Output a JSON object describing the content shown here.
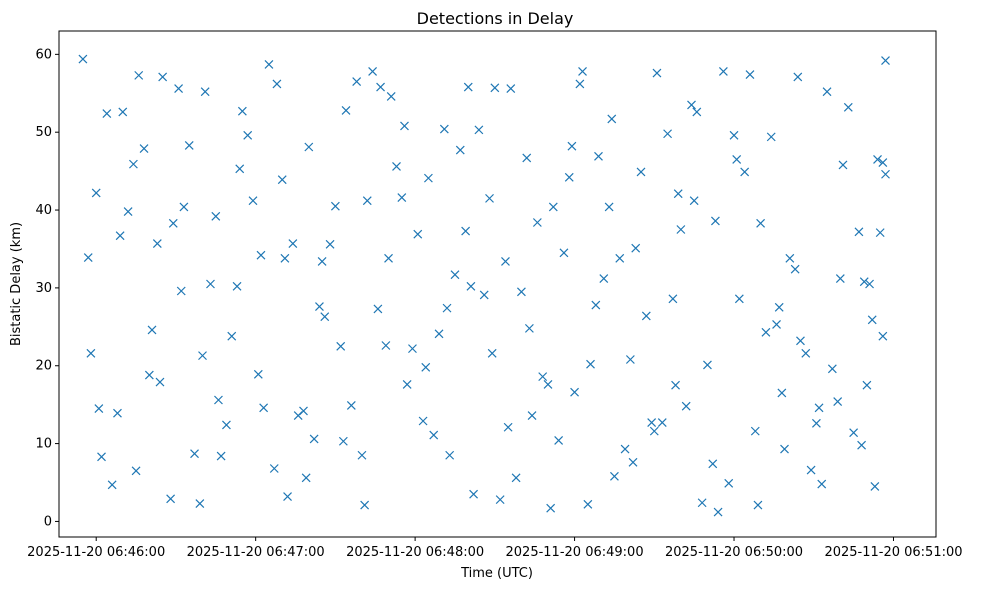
{
  "chart_data": {
    "type": "scatter",
    "title": "Detections in Delay",
    "xlabel": "Time (UTC)",
    "ylabel": "Bistatic Delay (km)",
    "x_tick_labels": [
      "2025-11-20 06:46:00",
      "2025-11-20 06:47:00",
      "2025-11-20 06:48:00",
      "2025-11-20 06:49:00",
      "2025-11-20 06:50:00",
      "2025-11-20 06:51:00"
    ],
    "y_tick_labels": [
      "0",
      "10",
      "20",
      "30",
      "40",
      "50",
      "60"
    ],
    "xlim": [
      "2025-11-20 06:45:46",
      "2025-11-20 06:51:16"
    ],
    "ylim": [
      -2,
      63
    ],
    "marker": "x",
    "color": "#1f77b4",
    "grid": false,
    "legend": "none",
    "series": [
      {
        "x": [
          "2025-11-20 06:45:55",
          "2025-11-20 06:46:02",
          "2025-11-20 06:46:10",
          "2025-11-20 06:46:18",
          "2025-11-20 06:46:25",
          "2025-11-20 06:46:33",
          "2025-11-20 06:46:41",
          "2025-11-20 06:46:49",
          "2025-11-20 06:46:57",
          "2025-11-20 06:47:05",
          "2025-11-20 06:47:12",
          "2025-11-20 06:47:20",
          "2025-11-20 06:47:28",
          "2025-11-20 06:47:36",
          "2025-11-20 06:47:44",
          "2025-11-20 06:47:51",
          "2025-11-20 06:47:59",
          "2025-11-20 06:48:07",
          "2025-11-20 06:48:15",
          "2025-11-20 06:48:22",
          "2025-11-20 06:48:30",
          "2025-11-20 06:48:38",
          "2025-11-20 06:48:46",
          "2025-11-20 06:48:54",
          "2025-11-20 06:49:02",
          "2025-11-20 06:49:09",
          "2025-11-20 06:49:17",
          "2025-11-20 06:49:25",
          "2025-11-20 06:49:33",
          "2025-11-20 06:49:40",
          "2025-11-20 06:49:48",
          "2025-11-20 06:49:56",
          "2025-11-20 06:50:04",
          "2025-11-20 06:50:12",
          "2025-11-20 06:50:19",
          "2025-11-20 06:50:27",
          "2025-11-20 06:50:35",
          "2025-11-20 06:50:43",
          "2025-11-20 06:50:51",
          "2025-11-20 06:50:57",
          "2025-11-20 06:45:58",
          "2025-11-20 06:46:06",
          "2025-11-20 06:46:14",
          "2025-11-20 06:46:21",
          "2025-11-20 06:46:29",
          "2025-11-20 06:46:37",
          "2025-11-20 06:46:45",
          "2025-11-20 06:46:53",
          "2025-11-20 06:47:01",
          "2025-11-20 06:47:08",
          "2025-11-20 06:47:16",
          "2025-11-20 06:47:24",
          "2025-11-20 06:47:32",
          "2025-11-20 06:47:40",
          "2025-11-20 06:47:47",
          "2025-11-20 06:47:55",
          "2025-11-20 06:48:03",
          "2025-11-20 06:48:11",
          "2025-11-20 06:48:19",
          "2025-11-20 06:48:26",
          "2025-11-20 06:48:34",
          "2025-11-20 06:48:42",
          "2025-11-20 06:48:50",
          "2025-11-20 06:48:58",
          "2025-11-20 06:49:05",
          "2025-11-20 06:49:13",
          "2025-11-20 06:49:21",
          "2025-11-20 06:49:29",
          "2025-11-20 06:49:37",
          "2025-11-20 06:49:44",
          "2025-11-20 06:49:52",
          "2025-11-20 06:50:00",
          "2025-11-20 06:50:08",
          "2025-11-20 06:50:16",
          "2025-11-20 06:50:23",
          "2025-11-20 06:50:31",
          "2025-11-20 06:50:39",
          "2025-11-20 06:50:47",
          "2025-11-20 06:50:54",
          "2025-11-20 06:50:56",
          "2025-11-20 06:46:01",
          "2025-11-20 06:46:09",
          "2025-11-20 06:46:16",
          "2025-11-20 06:46:24",
          "2025-11-20 06:46:32",
          "2025-11-20 06:46:40",
          "2025-11-20 06:46:47",
          "2025-11-20 06:46:55",
          "2025-11-20 06:47:03",
          "2025-11-20 06:47:11",
          "2025-11-20 06:47:19",
          "2025-11-20 06:47:26",
          "2025-11-20 06:47:34",
          "2025-11-20 06:47:42",
          "2025-11-20 06:47:50",
          "2025-11-20 06:47:57",
          "2025-11-20 06:48:05",
          "2025-11-20 06:48:13",
          "2025-11-20 06:48:21",
          "2025-11-20 06:48:29",
          "2025-11-20 06:48:36",
          "2025-11-20 06:48:44",
          "2025-11-20 06:48:52",
          "2025-11-20 06:49:00",
          "2025-11-20 06:49:08",
          "2025-11-20 06:49:15",
          "2025-11-20 06:49:23",
          "2025-11-20 06:49:31",
          "2025-11-20 06:49:39",
          "2025-11-20 06:49:46",
          "2025-11-20 06:49:54",
          "2025-11-20 06:50:02",
          "2025-11-20 06:50:10",
          "2025-11-20 06:50:18",
          "2025-11-20 06:50:25",
          "2025-11-20 06:50:33",
          "2025-11-20 06:50:41",
          "2025-11-20 06:50:49",
          "2025-11-20 06:50:55",
          "2025-11-20 06:50:53",
          "2025-11-20 06:45:57",
          "2025-11-20 06:46:04",
          "2025-11-20 06:46:12",
          "2025-11-20 06:46:20",
          "2025-11-20 06:46:28",
          "2025-11-20 06:46:35",
          "2025-11-20 06:46:43",
          "2025-11-20 06:46:51",
          "2025-11-20 06:46:59",
          "2025-11-20 06:47:07",
          "2025-11-20 06:47:14",
          "2025-11-20 06:47:22",
          "2025-11-20 06:47:30",
          "2025-11-20 06:47:38",
          "2025-11-20 06:47:46",
          "2025-11-20 06:47:53",
          "2025-11-20 06:48:01",
          "2025-11-20 06:48:09",
          "2025-11-20 06:48:17",
          "2025-11-20 06:48:24",
          "2025-11-20 06:48:32",
          "2025-11-20 06:48:40",
          "2025-11-20 06:48:48",
          "2025-11-20 06:48:56",
          "2025-11-20 06:49:03",
          "2025-11-20 06:49:11",
          "2025-11-20 06:49:19",
          "2025-11-20 06:49:27",
          "2025-11-20 06:49:35",
          "2025-11-20 06:49:42",
          "2025-11-20 06:49:50",
          "2025-11-20 06:49:58",
          "2025-11-20 06:50:06",
          "2025-11-20 06:50:14",
          "2025-11-20 06:50:21",
          "2025-11-20 06:50:29",
          "2025-11-20 06:50:37",
          "2025-11-20 06:50:45",
          "2025-11-20 06:50:52",
          "2025-11-20 06:50:50",
          "2025-11-20 06:46:00",
          "2025-11-20 06:46:08",
          "2025-11-20 06:46:15",
          "2025-11-20 06:46:23",
          "2025-11-20 06:46:31",
          "2025-11-20 06:46:39",
          "2025-11-20 06:46:46",
          "2025-11-20 06:46:54",
          "2025-11-20 06:47:02",
          "2025-11-20 06:47:10",
          "2025-11-20 06:47:18",
          "2025-11-20 06:47:25",
          "2025-11-20 06:47:33",
          "2025-11-20 06:47:41",
          "2025-11-20 06:47:49",
          "2025-11-20 06:47:56",
          "2025-11-20 06:48:04",
          "2025-11-20 06:48:12",
          "2025-11-20 06:48:20",
          "2025-11-20 06:48:28",
          "2025-11-20 06:48:35",
          "2025-11-20 06:48:43",
          "2025-11-20 06:48:51",
          "2025-11-20 06:48:59",
          "2025-11-20 06:49:06",
          "2025-11-20 06:49:14",
          "2025-11-20 06:49:22",
          "2025-11-20 06:49:30",
          "2025-11-20 06:49:38",
          "2025-11-20 06:49:45",
          "2025-11-20 06:49:53",
          "2025-11-20 06:50:01",
          "2025-11-20 06:50:09",
          "2025-11-20 06:50:17",
          "2025-11-20 06:50:24",
          "2025-11-20 06:50:32",
          "2025-11-20 06:50:40",
          "2025-11-20 06:50:48",
          "2025-11-20 06:50:56",
          "2025-11-20 06:50:57"
        ],
        "y": [
          59.4,
          8.3,
          52.6,
          47.9,
          57.1,
          40.4,
          55.2,
          12.4,
          49.6,
          58.7,
          3.2,
          48.1,
          35.6,
          14.9,
          57.8,
          54.6,
          22.2,
          11.1,
          31.7,
          3.5,
          55.7,
          5.6,
          38.4,
          10.4,
          56.2,
          46.9,
          33.8,
          44.9,
          12.7,
          37.5,
          2.4,
          57.8,
          44.9,
          24.3,
          9.3,
          21.6,
          55.2,
          53.2,
          30.5,
          59.2,
          21.6,
          4.7,
          45.9,
          24.6,
          38.3,
          8.7,
          39.2,
          30.2,
          18.9,
          56.2,
          13.6,
          27.6,
          22.5,
          8.5,
          55.8,
          41.6,
          12.9,
          50.4,
          37.3,
          29.1,
          33.4,
          46.7,
          17.6,
          44.2,
          2.2,
          40.4,
          20.8,
          12.7,
          28.6,
          53.5,
          7.4,
          49.6,
          11.6,
          25.3,
          32.4,
          12.6,
          15.4,
          37.2,
          46.5,
          23.8,
          14.5,
          36.7,
          57.3,
          17.9,
          29.6,
          21.3,
          8.4,
          52.7,
          14.6,
          33.8,
          5.6,
          26.3,
          52.8,
          41.2,
          33.8,
          17.6,
          44.1,
          8.5,
          30.2,
          21.6,
          55.6,
          13.6,
          40.4,
          16.6,
          27.8,
          5.8,
          35.1,
          57.6,
          42.1,
          52.6,
          1.2,
          28.6,
          38.3,
          16.5,
          23.2,
          4.8,
          45.8,
          30.8,
          37.1,
          4.5,
          33.9,
          52.4,
          39.8,
          18.8,
          2.9,
          48.3,
          30.5,
          23.8,
          41.2,
          6.8,
          35.7,
          10.6,
          40.5,
          56.5,
          27.3,
          45.6,
          36.9,
          24.1,
          47.7,
          50.3,
          2.8,
          29.5,
          18.6,
          34.5,
          57.8,
          31.2,
          9.3,
          26.4,
          49.8,
          14.8,
          20.1,
          4.9,
          57.4,
          49.4,
          33.8,
          6.6,
          19.6,
          11.4,
          25.9,
          17.5,
          42.2,
          13.9,
          6.5,
          35.7,
          55.6,
          2.3,
          15.6,
          45.3,
          34.2,
          43.9,
          14.2,
          33.4,
          10.3,
          2.1,
          22.6,
          50.8,
          19.8,
          27.4,
          55.8,
          41.5,
          12.1,
          24.8,
          1.7,
          48.2,
          20.2,
          51.7,
          7.6,
          11.6,
          17.5,
          41.2,
          38.6,
          46.5,
          2.1,
          27.5,
          57.1,
          14.6,
          31.2,
          9.8,
          46.1,
          44.6
        ]
      }
    ]
  }
}
